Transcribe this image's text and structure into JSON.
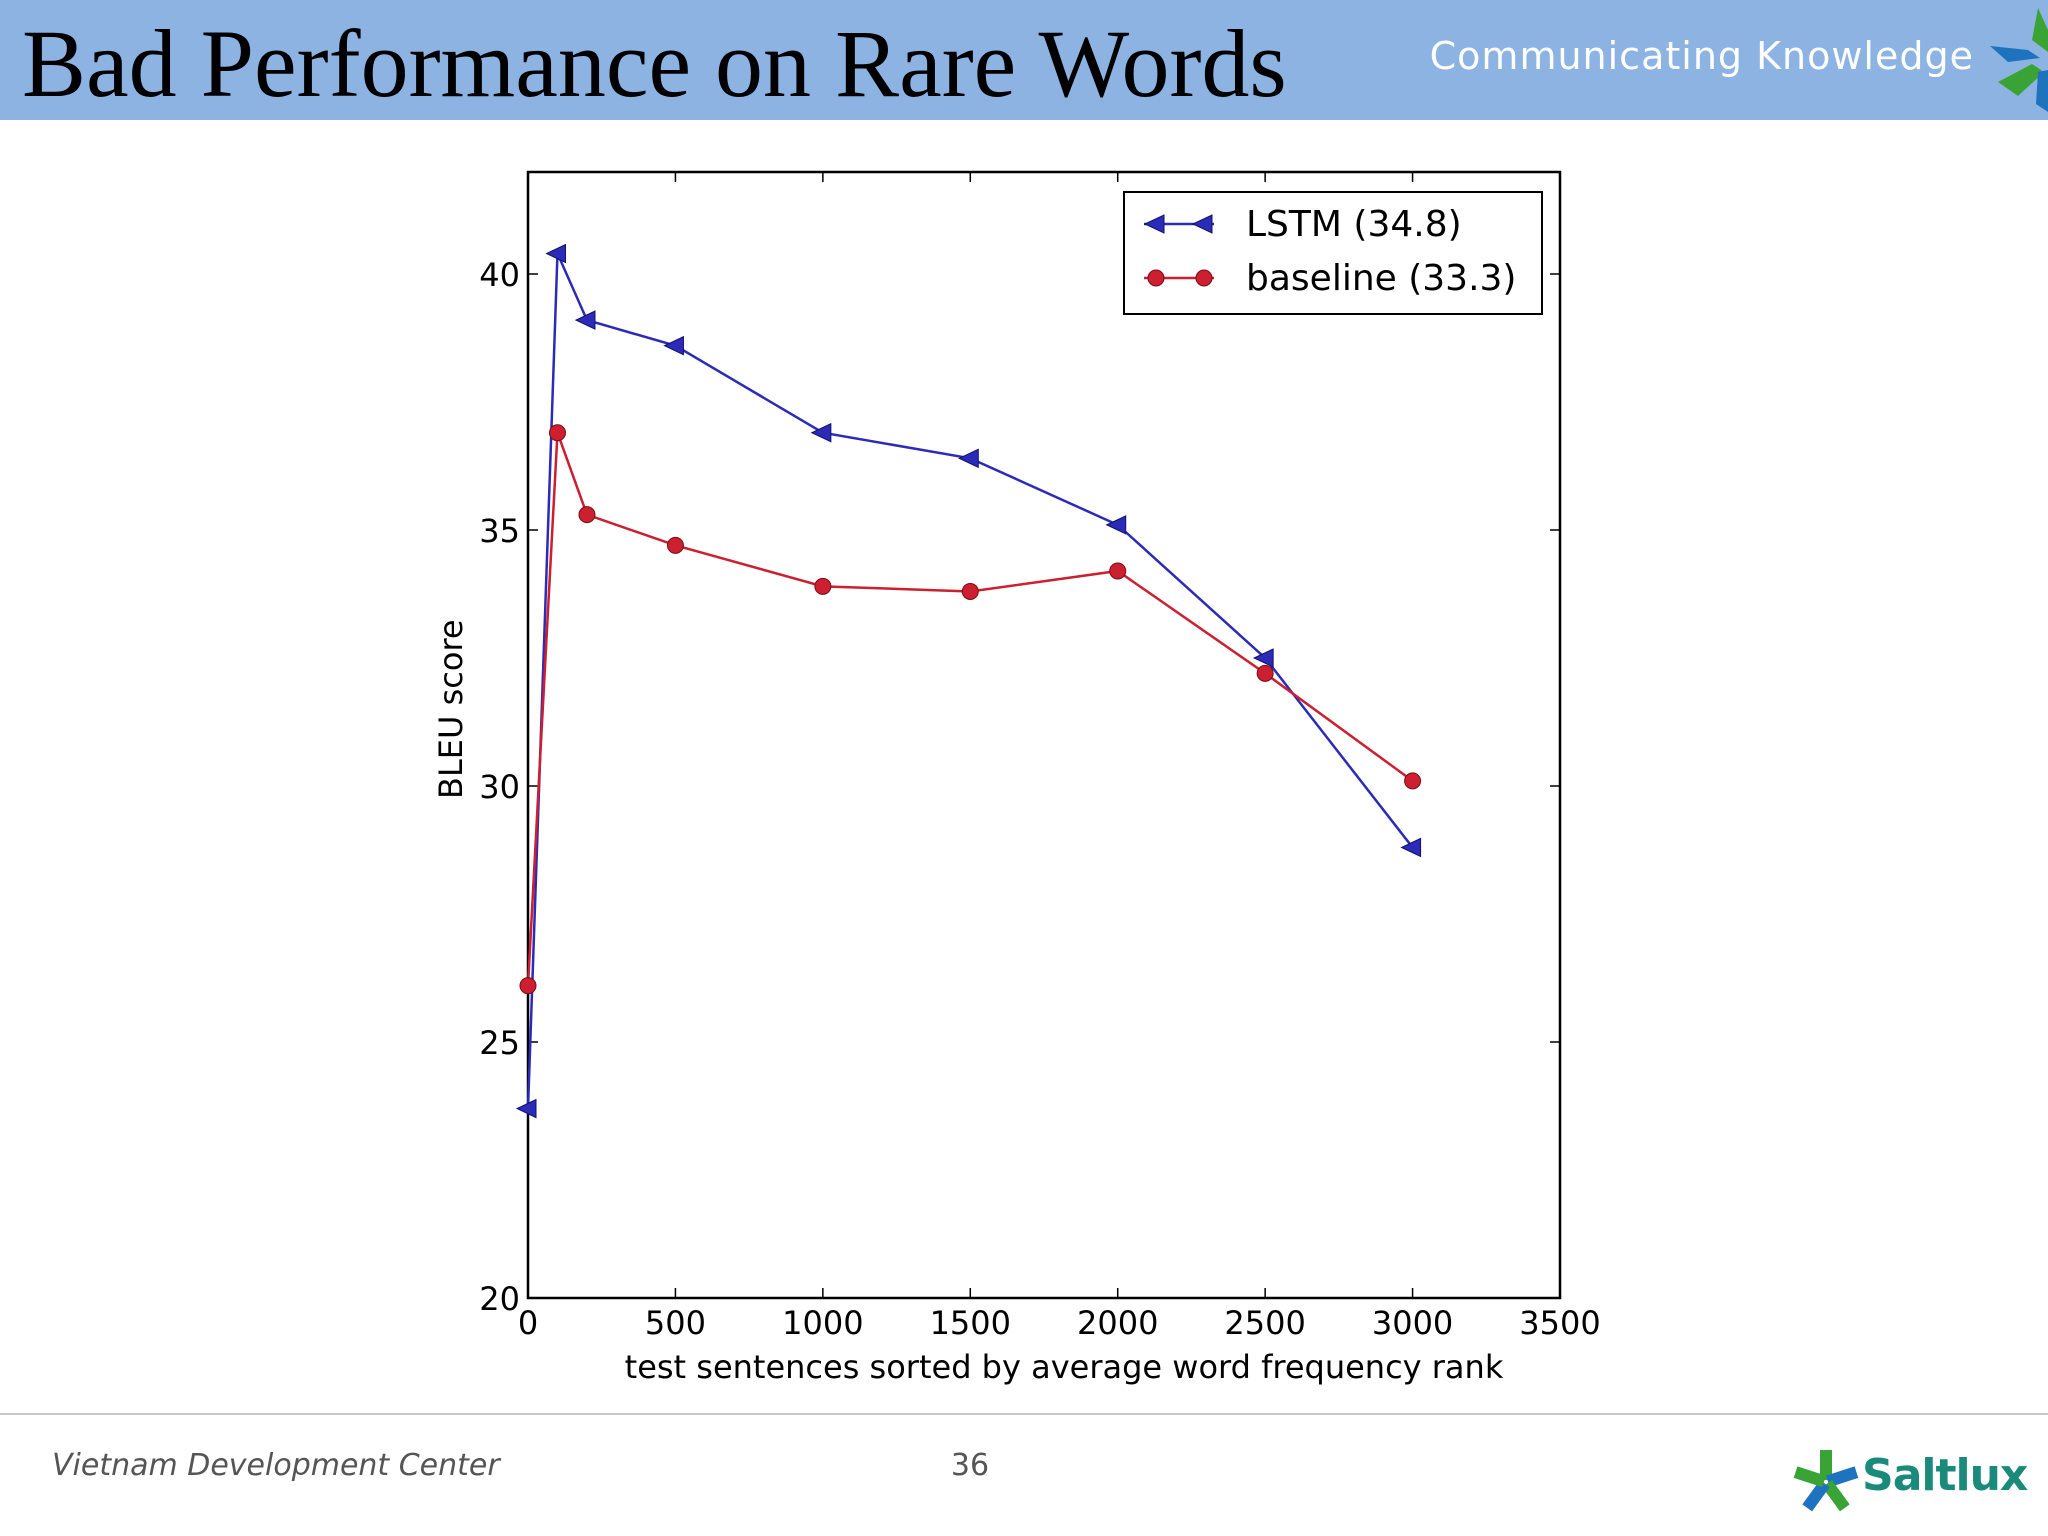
{
  "slide": {
    "title": "Bad Performance on Rare Words",
    "tagline": "Communicating Knowledge",
    "footer_left": "Vietnam Development Center",
    "page_number": "36",
    "brand": "Saltlux",
    "colors": {
      "header": "#8db3e2",
      "brand": "#1a8a7a",
      "brand_accent": "#1e73be"
    },
    "icons": [
      "saltlux-star-logo-icon"
    ]
  },
  "chart_data": {
    "type": "line",
    "title": "",
    "xlabel": "test sentences sorted by average word frequency rank",
    "ylabel": "BLEU score",
    "xlim": [
      0,
      3500
    ],
    "ylim": [
      20,
      42
    ],
    "xticks": [
      0,
      500,
      1000,
      1500,
      2000,
      2500,
      3000,
      3500
    ],
    "yticks": [
      20,
      25,
      30,
      35,
      40
    ],
    "grid": false,
    "legend_position": "top-right",
    "series": [
      {
        "name": "LSTM  (34.8)",
        "color": "#2b2bb8",
        "marker": "left-triangle",
        "x": [
          0,
          100,
          200,
          500,
          1000,
          1500,
          2000,
          2500,
          3000
        ],
        "y": [
          23.7,
          40.4,
          39.1,
          38.6,
          36.9,
          36.4,
          35.1,
          32.5,
          28.8
        ]
      },
      {
        "name": "baseline (33.3)",
        "color": "#cc1f2f",
        "marker": "circle",
        "x": [
          0,
          100,
          200,
          500,
          1000,
          1500,
          2000,
          2500,
          3000
        ],
        "y": [
          26.1,
          36.9,
          35.3,
          34.7,
          33.9,
          33.8,
          34.2,
          32.2,
          30.1
        ]
      }
    ]
  }
}
